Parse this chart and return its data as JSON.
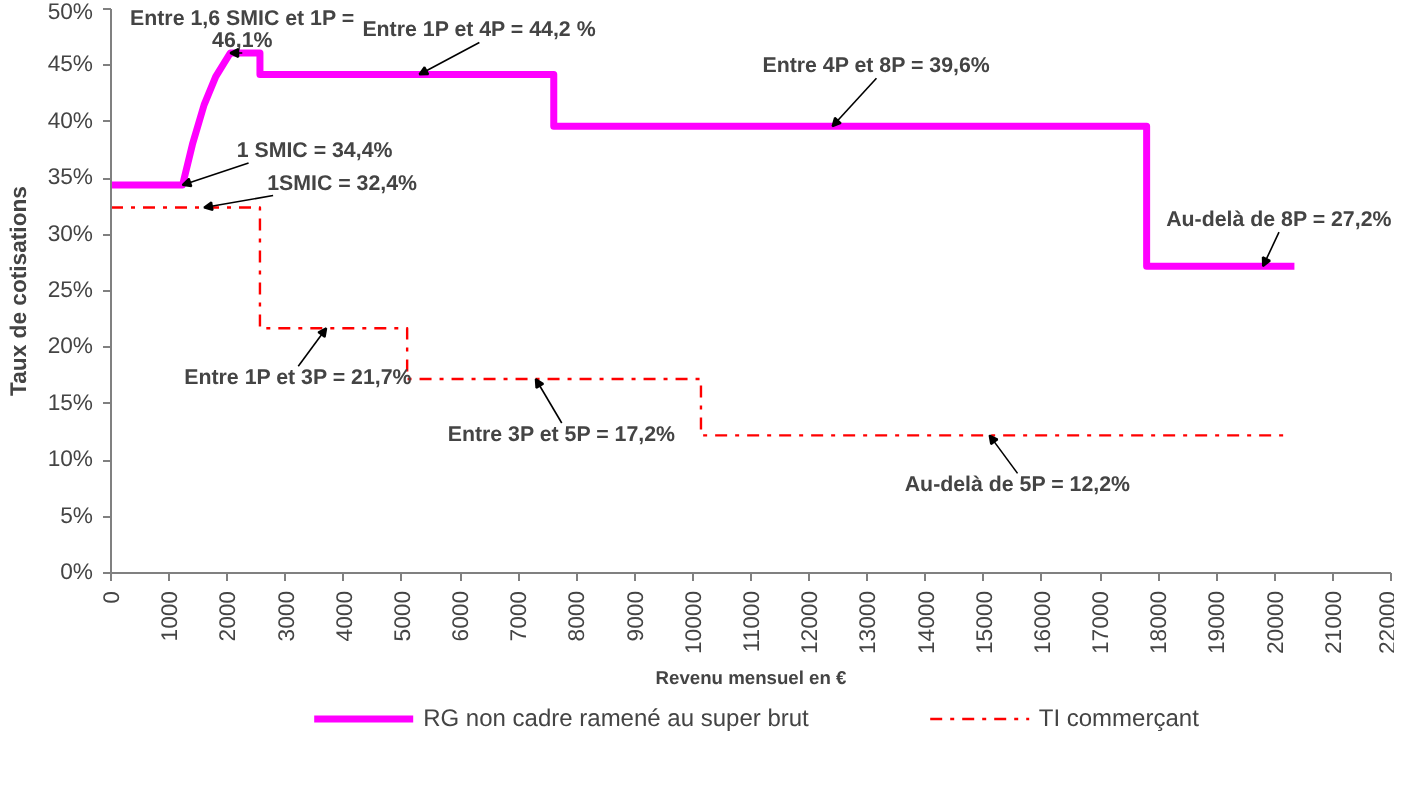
{
  "chart_data": {
    "type": "line",
    "xlabel": "Revenu mensuel en €",
    "ylabel": "Taux de cotisations",
    "xlim": [
      0,
      22000
    ],
    "xticks": [
      0,
      1000,
      2000,
      3000,
      4000,
      5000,
      6000,
      7000,
      8000,
      9000,
      10000,
      11000,
      12000,
      13000,
      14000,
      15000,
      16000,
      17000,
      18000,
      19000,
      20000,
      21000,
      22000
    ],
    "ylim": [
      0,
      50
    ],
    "yticks": [
      {
        "value": 0,
        "label": "0%"
      },
      {
        "value": 5,
        "label": "5%"
      },
      {
        "value": 10,
        "label": "10%"
      },
      {
        "value": 15,
        "label": "15%"
      },
      {
        "value": 20,
        "label": "20%"
      },
      {
        "value": 25,
        "label": "25%"
      },
      {
        "value": 30,
        "label": "30%"
      },
      {
        "value": 35,
        "label": "35%"
      },
      {
        "value": 40,
        "label": "40%"
      },
      {
        "value": 45,
        "label": "45%"
      },
      {
        "value": 50,
        "label": "50%"
      }
    ],
    "grid": false,
    "legend": "bottom",
    "marker": "none",
    "series": [
      {
        "name": "RG non cadre ramené au super brut",
        "color": "#ff00ff",
        "line_style": "solid",
        "x": [
          0,
          1230,
          1400,
          1600,
          1800,
          2050,
          2560,
          2560,
          7610,
          7610,
          17800,
          17800,
          20340
        ],
        "values": [
          34.4,
          34.4,
          38,
          41.5,
          44,
          46.1,
          46.1,
          44.2,
          44.2,
          39.6,
          39.6,
          27.2,
          27.2
        ]
      },
      {
        "name": "TI commerçant",
        "color": "#ff0000",
        "line_style": "dashdot",
        "x": [
          0,
          2560,
          2560,
          5090,
          5090,
          10140,
          10140,
          20240
        ],
        "values": [
          32.4,
          32.4,
          21.7,
          21.7,
          17.2,
          17.2,
          12.2,
          12.2
        ]
      }
    ],
    "annotations": [
      {
        "text": "Entre 1,6 SMIC et 1P =\n46,1%",
        "x": 2050,
        "y": 46.1
      },
      {
        "text": "Entre 1P et 4P = 44,2 %",
        "x": 5300,
        "y": 44.2
      },
      {
        "text": "1 SMIC = 34,4%",
        "x": 1230,
        "y": 34.4
      },
      {
        "text": "1SMIC = 32,4%",
        "x": 1600,
        "y": 32.4
      },
      {
        "text": "Entre 1P et 3P = 21,7%",
        "x": 3700,
        "y": 21.7
      },
      {
        "text": "Entre 3P et 5P = 17,2%",
        "x": 7300,
        "y": 17.2
      },
      {
        "text": "Entre 4P et 8P = 39,6%",
        "x": 12400,
        "y": 39.6
      },
      {
        "text": "Au-delà de 8P = 27,2%",
        "x": 19800,
        "y": 27.2
      },
      {
        "text": "Au-delà de 5P = 12,2%",
        "x": 15100,
        "y": 12.2
      }
    ]
  }
}
